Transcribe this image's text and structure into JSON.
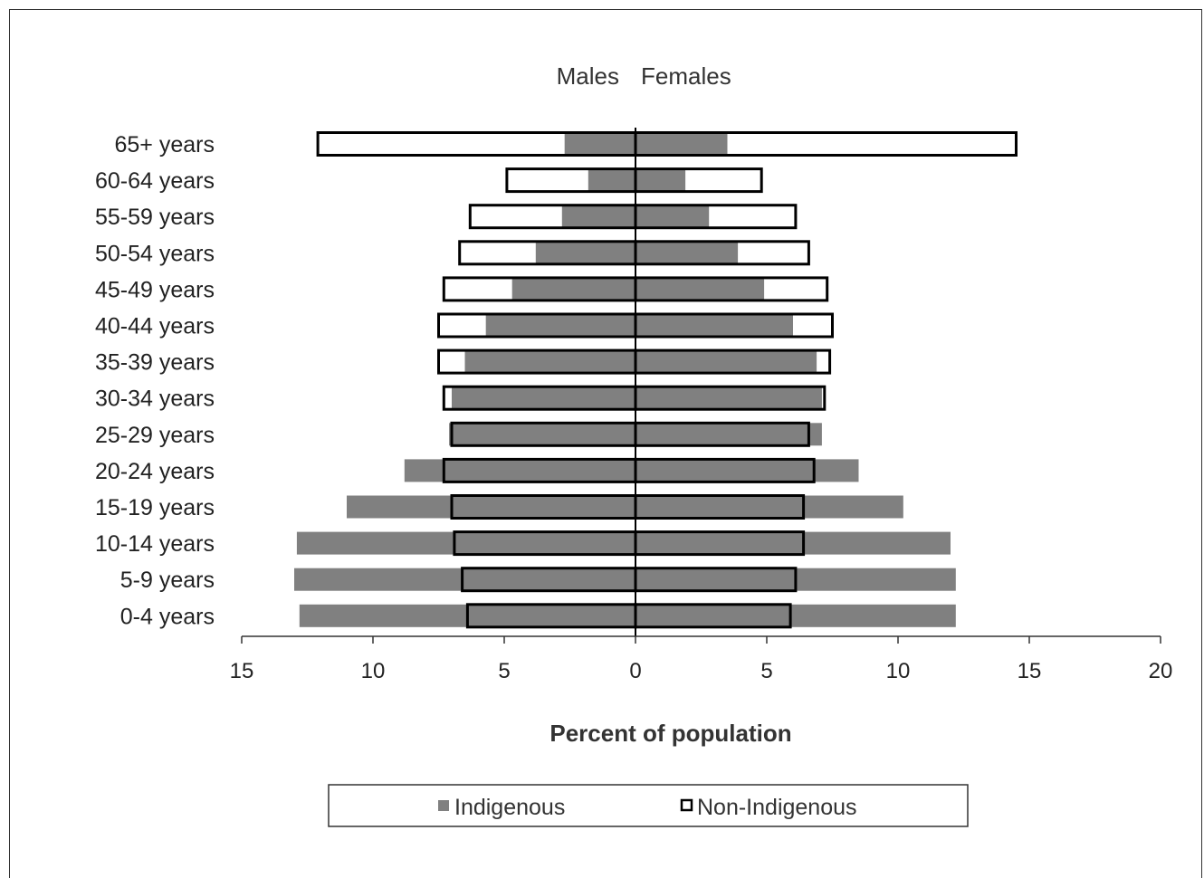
{
  "chart_data": {
    "type": "bar",
    "orientation": "horizontal",
    "layout": "population-pyramid",
    "side_labels": {
      "left": "Males",
      "right": "Females"
    },
    "xlabel": "Percent of population",
    "xlim": [
      -15,
      20
    ],
    "x_ticks": [
      -15,
      -10,
      -5,
      0,
      5,
      10,
      15,
      20
    ],
    "x_tick_labels": [
      "15",
      "10",
      "5",
      "0",
      "5",
      "10",
      "15",
      "20"
    ],
    "categories": [
      "65+ years",
      "60-64 years",
      "55-59 years",
      "50-54 years",
      "45-49 years",
      "40-44 years",
      "35-39 years",
      "30-34 years",
      "25-29 years",
      "20-24 years",
      "15-19 years",
      "10-14 years",
      "5-9 years",
      "0-4 years"
    ],
    "series": [
      {
        "name": "Indigenous",
        "style": "filled",
        "color": "#808080",
        "males": [
          2.7,
          1.8,
          2.8,
          3.8,
          4.7,
          5.7,
          6.5,
          7.0,
          7.1,
          8.8,
          11.0,
          12.9,
          13.0,
          12.8
        ],
        "females": [
          3.5,
          1.9,
          2.8,
          3.9,
          4.9,
          6.0,
          6.9,
          7.1,
          7.1,
          8.5,
          10.2,
          12.0,
          12.2,
          12.2
        ]
      },
      {
        "name": "Non-Indigenous",
        "style": "outline",
        "color": "#000000",
        "males": [
          12.1,
          4.9,
          6.3,
          6.7,
          7.3,
          7.5,
          7.5,
          7.3,
          7.0,
          7.3,
          7.0,
          6.9,
          6.6,
          6.4
        ],
        "females": [
          14.5,
          4.8,
          6.1,
          6.6,
          7.3,
          7.5,
          7.4,
          7.2,
          6.6,
          6.8,
          6.4,
          6.4,
          6.1,
          5.9
        ]
      }
    ],
    "legend_position": "bottom"
  }
}
